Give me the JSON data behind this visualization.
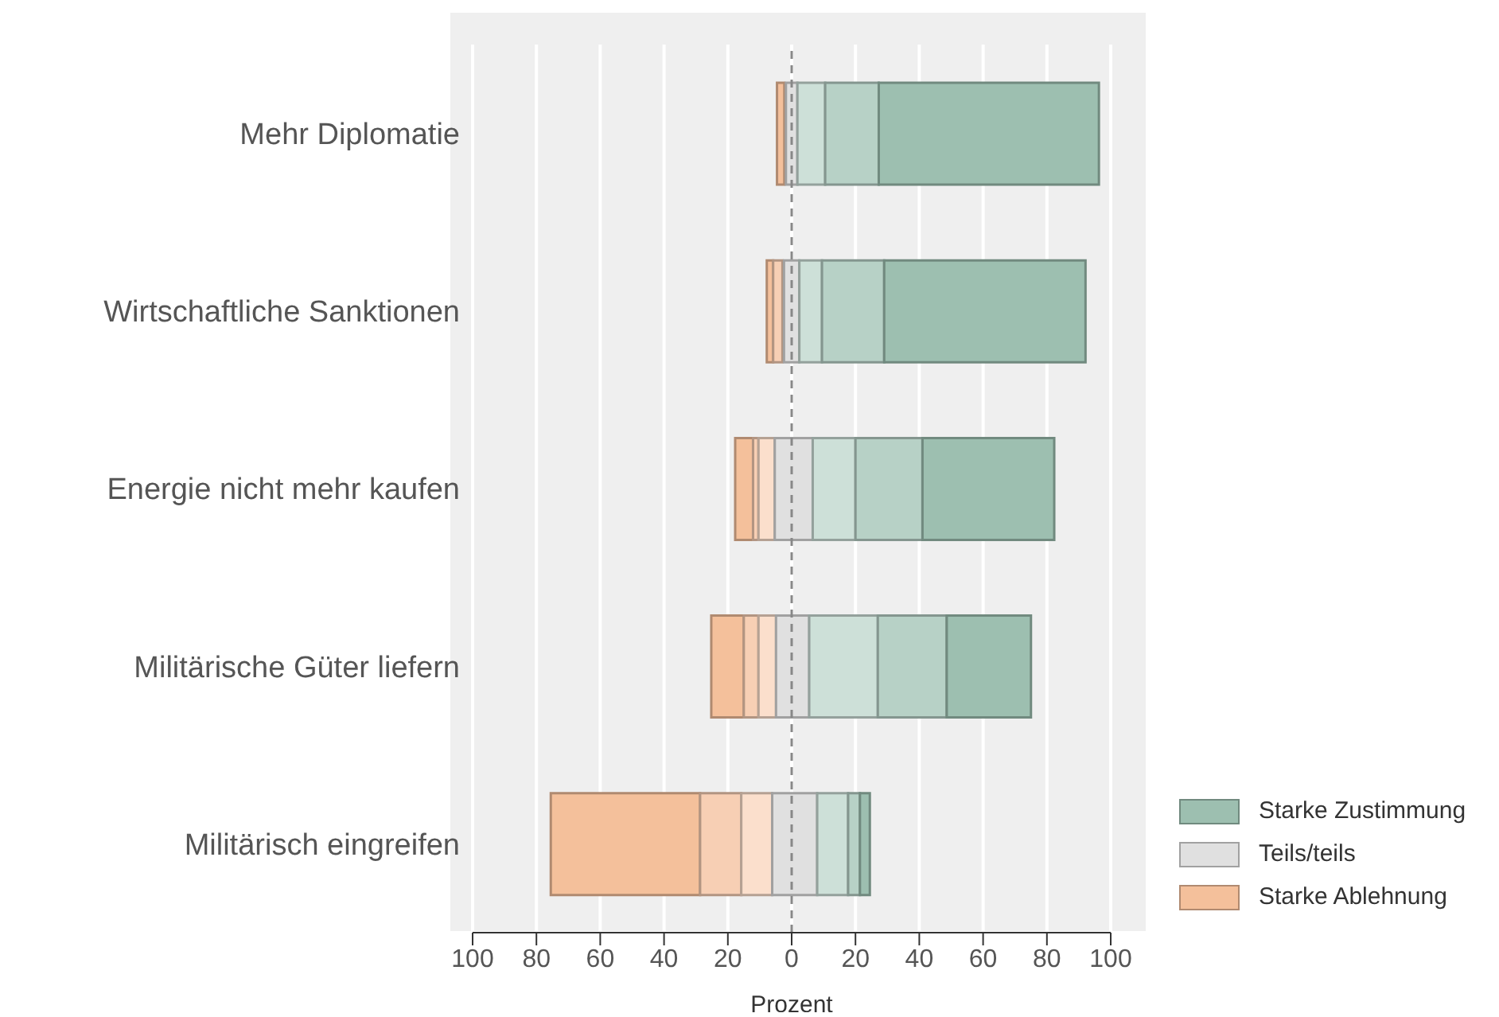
{
  "chart_data": {
    "type": "bar",
    "orientation": "horizontal",
    "xlabel": "Prozent",
    "categories": [
      "Mehr Diplomatie",
      "Wirtschaftliche Sanktionen",
      "Energie nicht mehr kaufen",
      "Militärische Güter liefern",
      "Militärisch eingreifen"
    ],
    "xlim": [
      -100,
      100
    ],
    "xticks": [
      {
        "value": -100,
        "label": "100"
      },
      {
        "value": -80,
        "label": "80"
      },
      {
        "value": -60,
        "label": "60"
      },
      {
        "value": -40,
        "label": "40"
      },
      {
        "value": -20,
        "label": "20"
      },
      0,
      20,
      40,
      60,
      80,
      100
    ],
    "series": [
      {
        "name": "Starke Ablehnung",
        "color": "#f4c09b",
        "base": [
          -4.6,
          -7.8,
          -17.7,
          -25.2,
          -75.5
        ],
        "values": [
          2.3,
          2,
          5.6,
          10.2,
          46.8
        ]
      },
      {
        "color": "#f7cfb4",
        "base": [
          null,
          -5.8,
          -12.1,
          -15,
          -28.7
        ],
        "values": [
          null,
          2.9,
          1.7,
          4.6,
          12.9
        ]
      },
      {
        "color": "#fbdfcc",
        "base": [
          null,
          null,
          -10.4,
          -10.4,
          -15.8
        ],
        "values": [
          null,
          null,
          5.1,
          5.5,
          9.7
        ]
      },
      {
        "name": "Teils/teils",
        "color": "#e0e0e0",
        "base": [
          -1.8,
          -2.4,
          -5.3,
          -4.9,
          -6.1
        ],
        "values": [
          3.6,
          4.8,
          11.9,
          10.4,
          14.1
        ]
      },
      {
        "color": "#cde0d8",
        "base": [
          1.8,
          2.4,
          6.6,
          5.5,
          8
        ],
        "values": [
          8.7,
          7.1,
          13.4,
          21.5,
          9.7
        ]
      },
      {
        "color": "#b7d1c6",
        "base": [
          10.5,
          9.5,
          20,
          27,
          17.7
        ],
        "values": [
          16.8,
          19.5,
          21,
          21.6,
          3.7
        ]
      },
      {
        "name": "Starke Zustimmung",
        "color": "#9dbfb0",
        "base": [
          27.3,
          29,
          41,
          48.6,
          21.4
        ],
        "values": [
          69,
          63.1,
          41.3,
          26.4,
          3.1
        ]
      }
    ],
    "grid": "x",
    "ref_lines": [
      {
        "axis": "x",
        "value": 0,
        "color": "#888888",
        "line_style": "dashed"
      }
    ],
    "legend": "bottom right"
  }
}
